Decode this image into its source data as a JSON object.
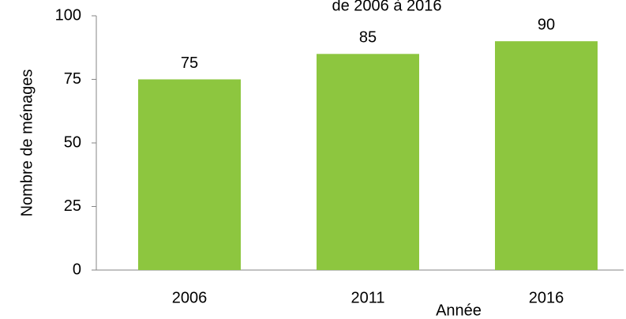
{
  "chart_data": {
    "type": "bar",
    "title": "de 2006 à 2016",
    "x_label": "Année",
    "y_label": "Nombre de ménages",
    "categories": [
      "2006",
      "2011",
      "2016"
    ],
    "values": [
      75,
      85,
      90
    ],
    "color": "#8dc63f",
    "ylim": [
      0,
      100
    ],
    "yticks": [
      0,
      25,
      50,
      75,
      100
    ],
    "grid": false
  }
}
